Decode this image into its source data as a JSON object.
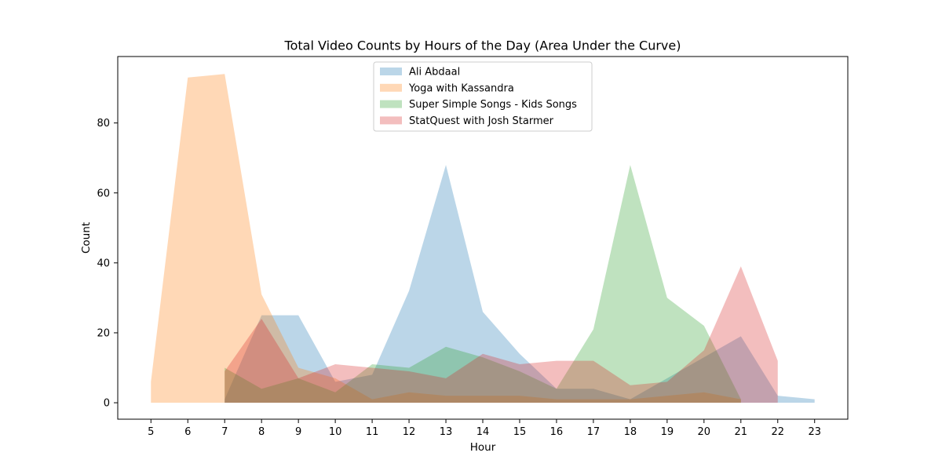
{
  "chart_data": {
    "type": "area",
    "title": "Total Video Counts by Hours of the Day (Area Under the Curve)",
    "xlabel": "Hour",
    "ylabel": "Count",
    "xlim": [
      4.1,
      23.9
    ],
    "ylim": [
      -4.7,
      99
    ],
    "x_ticks": [
      5,
      6,
      7,
      8,
      9,
      10,
      11,
      12,
      13,
      14,
      15,
      16,
      17,
      18,
      19,
      20,
      21,
      22,
      23
    ],
    "y_ticks": [
      0,
      20,
      40,
      60,
      80
    ],
    "grid": false,
    "legend_position": "top-center",
    "series": [
      {
        "name": "Ali Abdaal",
        "color": "#1f77b4",
        "x": [
          7,
          8,
          9,
          10,
          11,
          12,
          13,
          14,
          15,
          16,
          17,
          18,
          19,
          20,
          21,
          22,
          23
        ],
        "values": [
          1,
          25,
          25,
          6,
          8,
          32,
          68,
          26,
          14,
          4,
          4,
          1,
          7,
          13,
          19,
          2,
          1
        ]
      },
      {
        "name": "Yoga with Kassandra",
        "color": "#ff7f0e",
        "x": [
          5,
          6,
          7,
          8,
          9,
          10,
          11,
          12,
          13,
          14,
          15,
          16,
          17,
          18,
          19,
          20,
          21
        ],
        "values": [
          6,
          93,
          94,
          31,
          10,
          7,
          1,
          3,
          2,
          2,
          2,
          1,
          1,
          1,
          2,
          3,
          1
        ]
      },
      {
        "name": "Super Simple Songs - Kids Songs",
        "color": "#2ca02c",
        "x": [
          7,
          8,
          9,
          10,
          11,
          12,
          13,
          14,
          15,
          16,
          17,
          18,
          19,
          20,
          21
        ],
        "values": [
          10,
          4,
          7,
          3,
          11,
          10,
          16,
          13,
          9,
          4,
          21,
          68,
          30,
          22,
          1
        ]
      },
      {
        "name": "StatQuest with Josh Starmer",
        "color": "#d62728",
        "x": [
          7,
          8,
          9,
          10,
          11,
          12,
          13,
          14,
          15,
          16,
          17,
          18,
          19,
          20,
          21,
          22
        ],
        "values": [
          9,
          24,
          7,
          11,
          10,
          9,
          7,
          14,
          11,
          12,
          12,
          5,
          6,
          15,
          39,
          12
        ]
      }
    ]
  }
}
